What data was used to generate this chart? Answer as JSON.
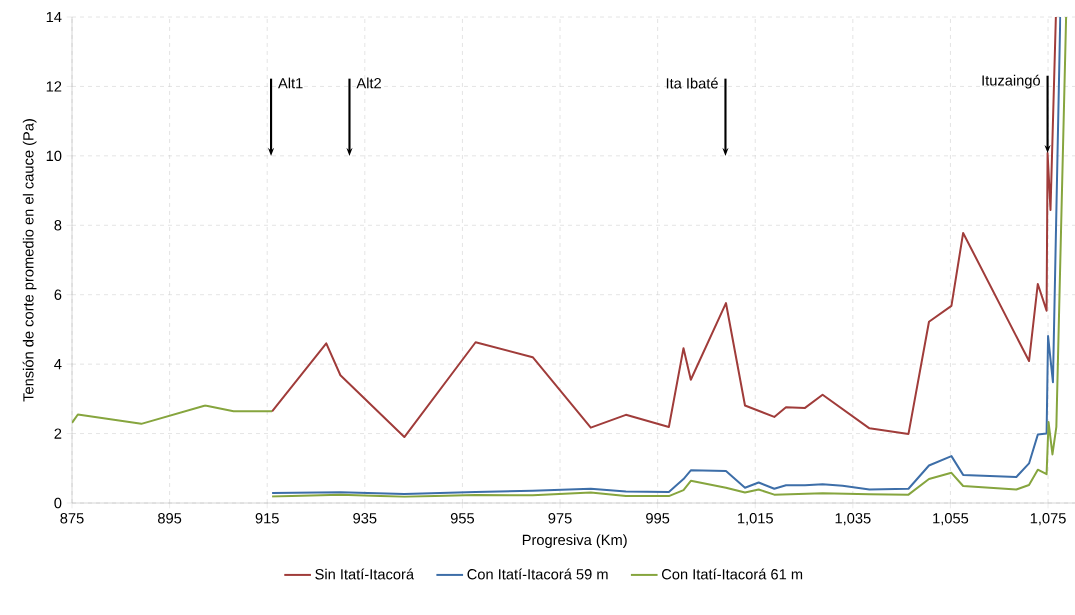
{
  "chart_data": {
    "type": "line",
    "xlabel": "Progresiva (Km)",
    "ylabel": "Tensión de corte promedio en el cauce (Pa)",
    "xlim": [
      875,
      1081
    ],
    "ylim": [
      0,
      14
    ],
    "xticks": [
      875,
      895,
      915,
      935,
      955,
      975,
      995,
      {
        "value": 1015,
        "label": "1,015"
      },
      {
        "value": 1035,
        "label": "1,035"
      },
      {
        "value": 1055,
        "label": "1,055"
      },
      {
        "value": 1075,
        "label": "1,075"
      }
    ],
    "yticks": [
      0,
      2,
      4,
      6,
      8,
      10,
      12,
      14
    ],
    "grid": true,
    "legend": "bottom",
    "line_style": "solid",
    "annotations": [
      "Alt1",
      "Alt2",
      "Ita Ibaté",
      {
        "text": "Ituzaingó",
        "x": 1074.9,
        "y": 10.08
      }
    ],
    "series": [
      {
        "name": "Sin Itatí-Itacorá",
        "color": "#a03c3a",
        "x": [
          916,
          927.1,
          930,
          943.1,
          957.7,
          969.4,
          981.3,
          988.5,
          997.3,
          1000.3,
          1001.8,
          1009,
          1012.9,
          1018.9,
          1021.3,
          1025.2,
          1028.8,
          1038.4,
          1046.4,
          1050.6,
          1055.2,
          1057.6,
          1071.1,
          1072.9,
          1074.7,
          1074.9,
          1075.5,
          1076.6
        ],
        "values": [
          2.64,
          4.6,
          3.68,
          1.9,
          4.63,
          4.2,
          2.17,
          2.54,
          2.19,
          4.46,
          3.55,
          5.76,
          2.81,
          2.48,
          2.76,
          2.74,
          3.12,
          2.15,
          1.99,
          5.22,
          5.68,
          7.78,
          4.09,
          6.31,
          5.54,
          10.08,
          8.44,
          14
        ]
      },
      {
        "name": "Con Itatí-Itacorá 59 m",
        "color": "#3d6ea8",
        "x": [
          916,
          930,
          943.1,
          957.7,
          969.4,
          981.3,
          988.5,
          997.3,
          1000.3,
          1001.8,
          1009,
          1012.9,
          1015.7,
          1018.9,
          1021.3,
          1025.2,
          1028.8,
          1032.9,
          1038.4,
          1046.4,
          1050.6,
          1055.2,
          1057.6,
          1068.5,
          1071.1,
          1072.9,
          1074.7,
          1075.0,
          1076.0,
          1077.5
        ],
        "values": [
          0.29,
          0.31,
          0.26,
          0.32,
          0.35,
          0.41,
          0.33,
          0.32,
          0.69,
          0.94,
          0.92,
          0.44,
          0.59,
          0.41,
          0.51,
          0.51,
          0.54,
          0.5,
          0.39,
          0.41,
          1.08,
          1.35,
          0.81,
          0.75,
          1.14,
          1.97,
          2.0,
          4.81,
          3.48,
          14
        ]
      },
      {
        "name": "Con Itatí-Itacorá 61 m",
        "color": "#86a53e",
        "x": [
          916,
          930,
          943.1,
          957.7,
          969.4,
          981.3,
          988.5,
          997.3,
          1000.3,
          1001.8,
          1009,
          1012.9,
          1015.7,
          1018.9,
          1028.8,
          1038.4,
          1046.4,
          1050.6,
          1055.2,
          1057.6,
          1068.5,
          1071.1,
          1072.9,
          1074.7,
          1075.1,
          1075.9,
          1076.7,
          1078.7
        ],
        "values": [
          0.19,
          0.24,
          0.18,
          0.23,
          0.22,
          0.3,
          0.2,
          0.2,
          0.37,
          0.64,
          0.44,
          0.3,
          0.39,
          0.24,
          0.28,
          0.25,
          0.24,
          0.69,
          0.87,
          0.49,
          0.39,
          0.52,
          0.96,
          0.83,
          2.33,
          1.4,
          2.19,
          14
        ]
      },
      {
        "color": "#86a53e",
        "x": [
          875,
          876.2,
          889.2,
          902.3,
          908.1,
          916
        ],
        "values": [
          2.31,
          2.55,
          2.28,
          2.81,
          2.64,
          2.64
        ]
      }
    ]
  }
}
